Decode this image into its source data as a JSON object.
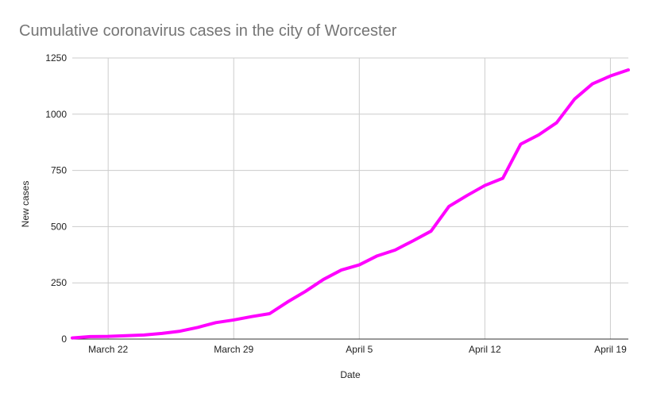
{
  "chart_data": {
    "type": "line",
    "title": "Cumulative coronavirus cases in the city of Worcester",
    "xlabel": "Date",
    "ylabel": "New cases",
    "x_range": [
      "2020-03-20",
      "2020-04-20"
    ],
    "ylim": [
      0,
      1250
    ],
    "y_ticks": [
      0,
      250,
      500,
      750,
      1000,
      1250
    ],
    "x_ticks": [
      {
        "date": "2020-03-22",
        "label": "March 22"
      },
      {
        "date": "2020-03-29",
        "label": "March 29"
      },
      {
        "date": "2020-04-05",
        "label": "April 5"
      },
      {
        "date": "2020-04-12",
        "label": "April 12"
      },
      {
        "date": "2020-04-19",
        "label": "April 19"
      }
    ],
    "grid": true,
    "legend": "none",
    "series": [
      {
        "color": "#ff00ff",
        "x": [
          "2020-03-20",
          "2020-03-21",
          "2020-03-22",
          "2020-03-23",
          "2020-03-24",
          "2020-03-25",
          "2020-03-26",
          "2020-03-27",
          "2020-03-28",
          "2020-03-29",
          "2020-03-30",
          "2020-03-31",
          "2020-04-01",
          "2020-04-02",
          "2020-04-03",
          "2020-04-04",
          "2020-04-05",
          "2020-04-06",
          "2020-04-07",
          "2020-04-08",
          "2020-04-09",
          "2020-04-10",
          "2020-04-11",
          "2020-04-12",
          "2020-04-13",
          "2020-04-14",
          "2020-04-15",
          "2020-04-16",
          "2020-04-17",
          "2020-04-18",
          "2020-04-19",
          "2020-04-20"
        ],
        "values": [
          5,
          11,
          12,
          15,
          18,
          25,
          35,
          52,
          73,
          85,
          100,
          113,
          165,
          212,
          265,
          307,
          330,
          370,
          396,
          437,
          480,
          590,
          638,
          683,
          715,
          867,
          908,
          962,
          1067,
          1135,
          1170,
          1197
        ]
      }
    ]
  }
}
